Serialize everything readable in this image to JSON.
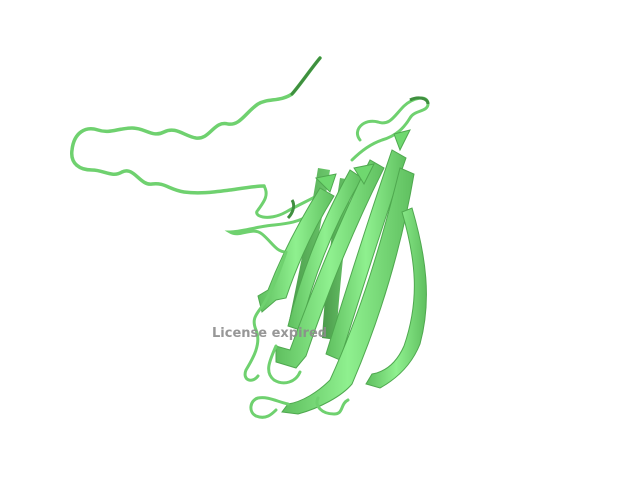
{
  "viewer": {
    "watermark": "License expired"
  },
  "structure": {
    "representation": "cartoon",
    "colors": {
      "strand_light": "#8ee88e",
      "strand_mid": "#6fd86f",
      "strand_dark": "#4fa84f",
      "coil": "#6fd16f",
      "coil_shadow": "#3f8f3f",
      "background": "#ffffff"
    }
  }
}
